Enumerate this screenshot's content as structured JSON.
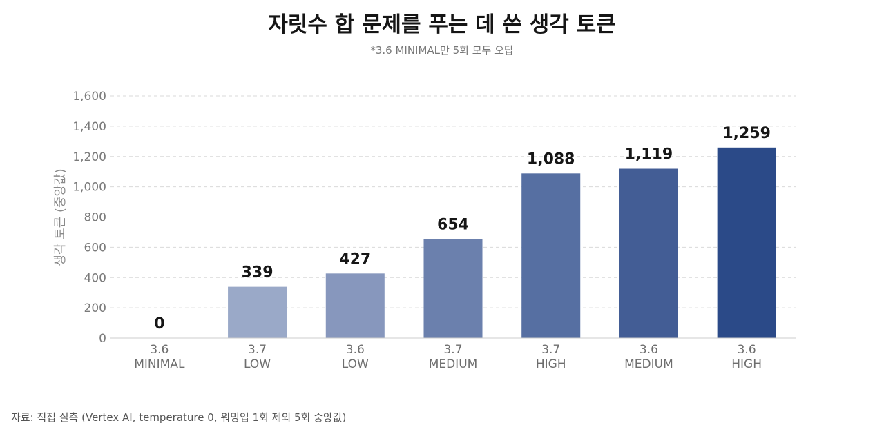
{
  "chart_data": {
    "type": "bar",
    "title": "자릿수 합 문제를 푸는 데 쓴 생각 토큰",
    "subtitle": "*3.6 MINIMAL만 5회 모두 오답",
    "ylabel": "생각 토큰 (중앙값)",
    "xlabel": "",
    "source": "자료: 직접 실측 (Vertex AI, temperature 0, 워밍업 1회 제외 5회 중앙값)",
    "ylim": [
      0,
      1600
    ],
    "yticks": [
      0,
      200,
      400,
      600,
      800,
      1000,
      1200,
      1400,
      1600
    ],
    "ytick_labels": [
      "0",
      "200",
      "400",
      "600",
      "800",
      "1,000",
      "1,200",
      "1,400",
      "1,600"
    ],
    "grid": true,
    "categories": [
      {
        "line1": "3.6",
        "line2": "MINIMAL"
      },
      {
        "line1": "3.7",
        "line2": "LOW"
      },
      {
        "line1": "3.6",
        "line2": "LOW"
      },
      {
        "line1": "3.7",
        "line2": "MEDIUM"
      },
      {
        "line1": "3.7",
        "line2": "HIGH"
      },
      {
        "line1": "3.6",
        "line2": "MEDIUM"
      },
      {
        "line1": "3.6",
        "line2": "HIGH"
      }
    ],
    "values": [
      0,
      339,
      427,
      654,
      1088,
      1119,
      1259
    ],
    "value_labels": [
      "0",
      "339",
      "427",
      "654",
      "1,088",
      "1,119",
      "1,259"
    ],
    "colors": [
      "#b3bed4",
      "#9aa9c8",
      "#8797bd",
      "#6b80ad",
      "#566fa2",
      "#435d95",
      "#2b4a88"
    ]
  }
}
